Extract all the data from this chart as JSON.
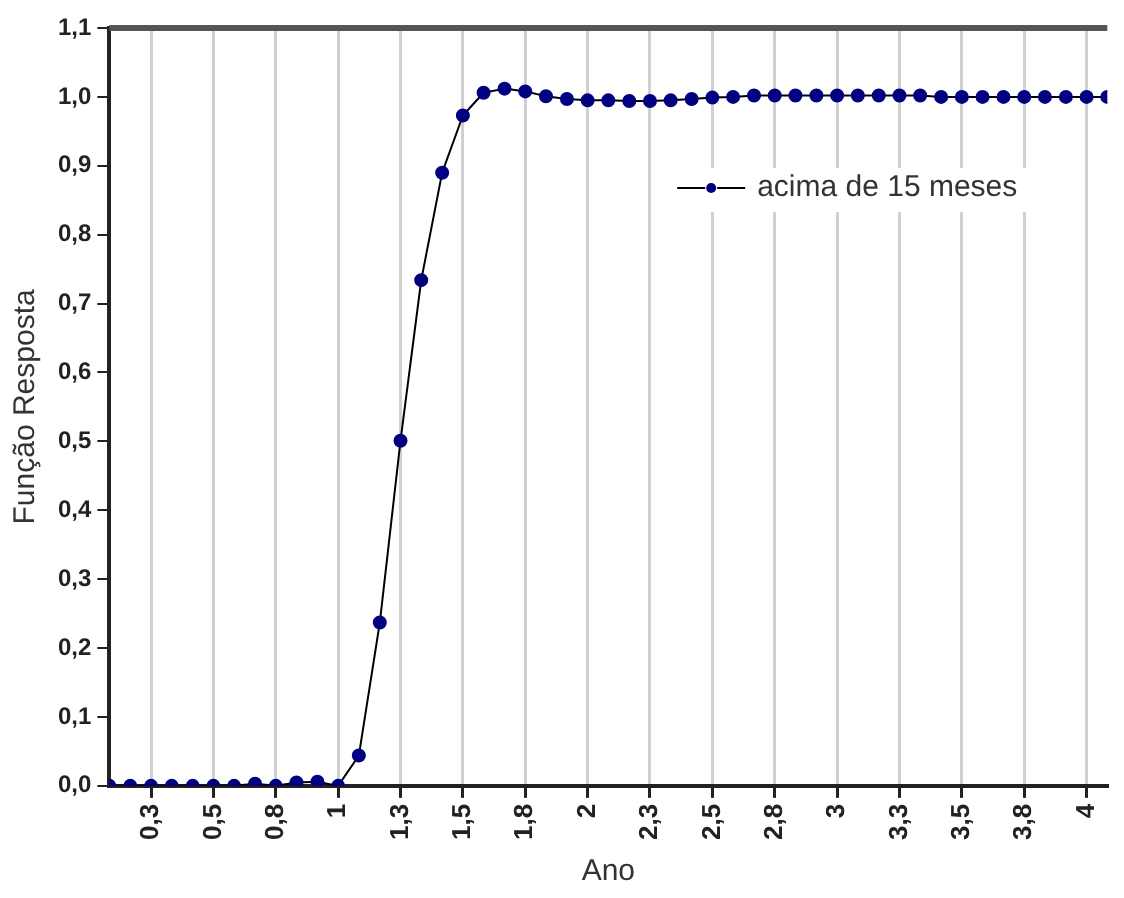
{
  "chart_data": {
    "type": "line",
    "xlabel": "Ano",
    "ylabel": "Função Resposta",
    "legend": "top right",
    "grid": "x",
    "marker": "circle",
    "line_style": "solid",
    "x": [
      0.083,
      0.167,
      0.25,
      0.333,
      0.417,
      0.5,
      0.583,
      0.667,
      0.75,
      0.833,
      0.917,
      1,
      1.083,
      1.167,
      1.25,
      1.333,
      1.417,
      1.5,
      1.583,
      1.667,
      1.75,
      1.833,
      1.917,
      2,
      2.083,
      2.167,
      2.25,
      2.333,
      2.417,
      2.5,
      2.583,
      2.667,
      2.75,
      2.833,
      2.917,
      3,
      3.083,
      3.167,
      3.25,
      3.333,
      3.417,
      3.5,
      3.583,
      3.667,
      3.75,
      3.833,
      3.917,
      4,
      4.083
    ],
    "series": [
      {
        "name": "acima de 15 meses",
        "color": "#000080",
        "values": [
          0,
          0,
          0,
          0,
          0,
          0,
          0,
          0.003,
          0,
          0.005,
          0.006,
          0,
          0.044,
          0.237,
          0.501,
          0.734,
          0.89,
          0.973,
          1.006,
          1.012,
          1.008,
          1.001,
          0.997,
          0.995,
          0.995,
          0.994,
          0.994,
          0.995,
          0.997,
          0.999,
          1,
          1.002,
          1.002,
          1.002,
          1.002,
          1.002,
          1.002,
          1.002,
          1.002,
          1.002,
          1,
          1,
          1,
          1,
          1,
          1,
          1,
          1,
          1
        ]
      }
    ],
    "xlim": [
      0.083,
      4.083
    ],
    "xticks": [
      {
        "value": 0.25,
        "label": "0,3"
      },
      {
        "value": 0.5,
        "label": "0,5"
      },
      {
        "value": 0.75,
        "label": "0,8"
      },
      1,
      {
        "value": 1.25,
        "label": "1,3"
      },
      {
        "value": 1.5,
        "label": "1,5"
      },
      {
        "value": 1.75,
        "label": "1,8"
      },
      2,
      {
        "value": 2.25,
        "label": "2,3"
      },
      {
        "value": 2.5,
        "label": "2,5"
      },
      {
        "value": 2.75,
        "label": "2,8"
      },
      3,
      {
        "value": 3.25,
        "label": "3,3"
      },
      {
        "value": 3.5,
        "label": "3,5"
      },
      {
        "value": 3.75,
        "label": "3,8"
      },
      4
    ],
    "ylim": [
      0,
      1.1
    ],
    "yticks": [
      {
        "value": 0,
        "label": "0,0"
      },
      {
        "value": 0.1,
        "label": "0,1"
      },
      {
        "value": 0.2,
        "label": "0,2"
      },
      {
        "value": 0.3,
        "label": "0,3"
      },
      {
        "value": 0.4,
        "label": "0,4"
      },
      {
        "value": 0.5,
        "label": "0,5"
      },
      {
        "value": 0.6,
        "label": "0,6"
      },
      {
        "value": 0.7,
        "label": "0,7"
      },
      {
        "value": 0.8,
        "label": "0,8"
      },
      {
        "value": 0.9,
        "label": "0,9"
      },
      {
        "value": 1,
        "label": "1,0"
      },
      {
        "value": 1.1,
        "label": "1,1"
      }
    ]
  }
}
